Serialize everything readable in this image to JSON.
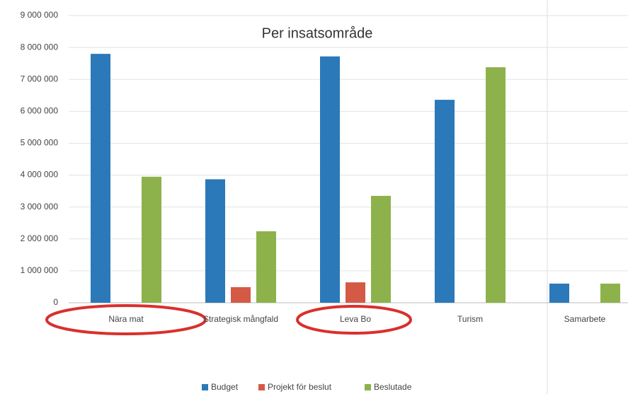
{
  "chart_data": {
    "type": "bar",
    "title": "Per insatsområde",
    "categories": [
      "Nära mat",
      "Strategisk mångfald",
      "Leva Bo",
      "Turism",
      "Samarbete"
    ],
    "series": [
      {
        "name": "Budget",
        "color": "#2b79b9",
        "values": [
          7800000,
          3870000,
          7720000,
          6360000,
          600000
        ]
      },
      {
        "name": "Projekt för beslut",
        "color": "#d55a45",
        "values": [
          0,
          490000,
          640000,
          0,
          0
        ]
      },
      {
        "name": "Beslutade",
        "color": "#8db24c",
        "values": [
          3950000,
          2240000,
          3350000,
          7380000,
          600000
        ]
      }
    ],
    "ylim": [
      0,
      9000000
    ],
    "yticks": [
      {
        "value": 0,
        "label": "0"
      },
      {
        "value": 1000000,
        "label": "1 000 000"
      },
      {
        "value": 2000000,
        "label": "2 000 000"
      },
      {
        "value": 3000000,
        "label": "3 000 000"
      },
      {
        "value": 4000000,
        "label": "4 000 000"
      },
      {
        "value": 5000000,
        "label": "5 000 000"
      },
      {
        "value": 6000000,
        "label": "6 000 000"
      },
      {
        "value": 7000000,
        "label": "7 000 000"
      },
      {
        "value": 8000000,
        "label": "8 000 000"
      },
      {
        "value": 9000000,
        "label": "9 000 000"
      }
    ],
    "grid": true,
    "legend": "bottom"
  }
}
